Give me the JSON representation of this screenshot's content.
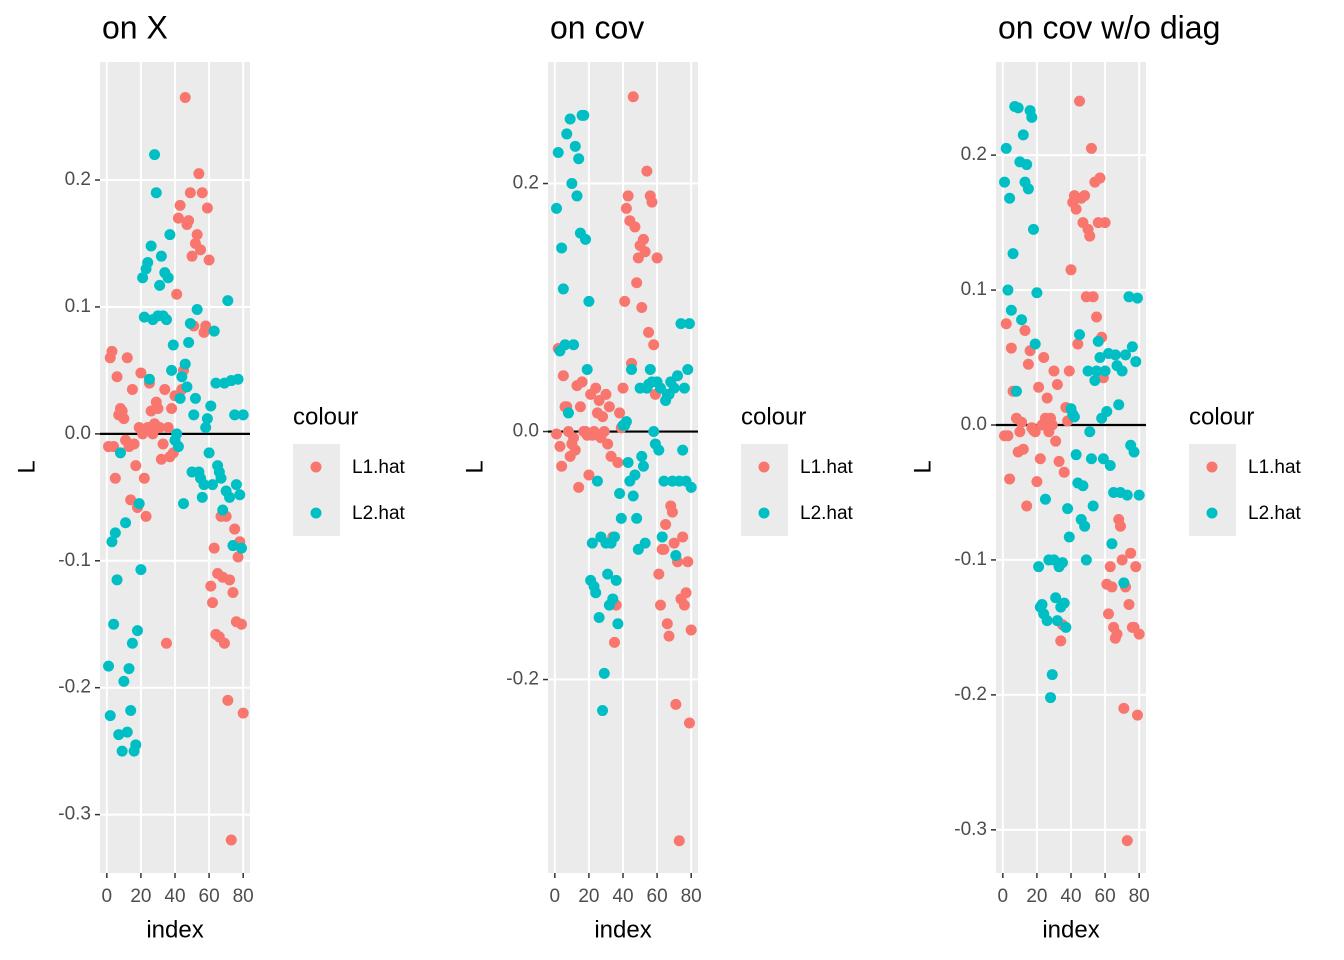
{
  "chart_data": [
    {
      "type": "scatter",
      "title": "on X",
      "xlabel": "index",
      "ylabel": "L",
      "legend_title": "colour",
      "legend": "right",
      "grid": true,
      "hline": 0,
      "x": [
        1,
        2,
        3,
        4,
        5,
        6,
        7,
        8,
        9,
        10,
        11,
        12,
        13,
        14,
        15,
        16,
        17,
        18,
        19,
        20,
        21,
        22,
        23,
        24,
        25,
        26,
        27,
        28,
        29,
        30,
        31,
        32,
        33,
        34,
        35,
        36,
        37,
        38,
        39,
        40,
        41,
        42,
        43,
        44,
        45,
        46,
        47,
        48,
        49,
        50,
        51,
        52,
        53,
        54,
        55,
        56,
        57,
        58,
        59,
        60,
        61,
        62,
        63,
        64,
        65,
        66,
        67,
        68,
        69,
        70,
        71,
        72,
        73,
        74,
        75,
        76,
        77,
        78,
        79,
        80
      ],
      "xlim": [
        -4,
        84
      ],
      "xticks": [
        0,
        20,
        40,
        60,
        80
      ],
      "ylim": [
        -0.346,
        0.293
      ],
      "yticks": [
        -0.3,
        -0.2,
        -0.1,
        {
          "value": 0,
          "label": "0.0"
        },
        0.1,
        0.2
      ],
      "series": [
        {
          "name": "L1.hat",
          "color": "#F8766D",
          "values": [
            -0.01,
            0.06,
            0.065,
            -0.01,
            -0.035,
            0.045,
            0.015,
            0.02,
            0.018,
            0.012,
            -0.005,
            0.06,
            -0.01,
            -0.052,
            0.035,
            -0.008,
            -0.025,
            -0.058,
            0.005,
            0.048,
            0.0,
            -0.035,
            -0.065,
            0.005,
            0.04,
            0.018,
            0.0,
            0.008,
            0.025,
            0.02,
            0.005,
            -0.02,
            -0.008,
            0.035,
            -0.165,
            0.005,
            -0.018,
            0.02,
            -0.015,
            0.03,
            0.11,
            0.17,
            0.18,
            0.035,
            0.05,
            0.265,
            0.165,
            0.168,
            0.19,
            0.14,
            0.085,
            0.15,
            0.157,
            0.205,
            0.145,
            0.19,
            0.08,
            0.085,
            0.178,
            0.137,
            -0.12,
            -0.133,
            -0.09,
            -0.158,
            -0.11,
            -0.16,
            -0.065,
            -0.113,
            -0.165,
            -0.065,
            -0.21,
            -0.115,
            -0.32,
            -0.125,
            -0.075,
            -0.148,
            -0.097,
            -0.085,
            -0.15,
            -0.22
          ]
        },
        {
          "name": "L2.hat",
          "color": "#00BFC4",
          "values": [
            -0.183,
            -0.222,
            -0.085,
            -0.15,
            -0.078,
            -0.115,
            -0.237,
            -0.015,
            -0.25,
            -0.195,
            -0.07,
            -0.235,
            -0.185,
            -0.218,
            -0.165,
            -0.25,
            -0.245,
            -0.155,
            -0.055,
            -0.107,
            0.123,
            0.092,
            0.13,
            0.135,
            0.043,
            0.148,
            0.09,
            0.22,
            0.19,
            0.093,
            0.117,
            0.14,
            0.093,
            0.127,
            0.09,
            0.123,
            0.157,
            0.05,
            0.07,
            -0.005,
            0.0,
            -0.01,
            0.028,
            0.045,
            -0.055,
            0.055,
            0.037,
            0.072,
            0.087,
            -0.03,
            0.015,
            0.028,
            0.098,
            -0.03,
            -0.035,
            -0.05,
            -0.04,
            0.005,
            0.012,
            -0.015,
            0.022,
            -0.04,
            0.081,
            0.04,
            -0.025,
            -0.03,
            -0.035,
            -0.06,
            0.04,
            -0.045,
            0.105,
            -0.05,
            0.042,
            -0.088,
            0.015,
            -0.04,
            0.043,
            -0.048,
            -0.09,
            0.015
          ]
        }
      ]
    },
    {
      "type": "scatter",
      "title": "on cov",
      "xlabel": "index",
      "ylabel": "L",
      "legend_title": "colour",
      "legend": "right",
      "grid": true,
      "hline": 0,
      "x": [
        1,
        2,
        3,
        4,
        5,
        6,
        7,
        8,
        9,
        10,
        11,
        12,
        13,
        14,
        15,
        16,
        17,
        18,
        19,
        20,
        21,
        22,
        23,
        24,
        25,
        26,
        27,
        28,
        29,
        30,
        31,
        32,
        33,
        34,
        35,
        36,
        37,
        38,
        39,
        40,
        41,
        42,
        43,
        44,
        45,
        46,
        47,
        48,
        49,
        50,
        51,
        52,
        53,
        54,
        55,
        56,
        57,
        58,
        59,
        60,
        61,
        62,
        63,
        64,
        65,
        66,
        67,
        68,
        69,
        70,
        71,
        72,
        73,
        74,
        75,
        76,
        77,
        78,
        79,
        80
      ],
      "xlim": [
        -4,
        84
      ],
      "xticks": [
        0,
        20,
        40,
        60,
        80
      ],
      "ylim": [
        -0.356,
        0.298
      ],
      "yticks": [
        -0.2,
        {
          "value": 0,
          "label": "0.0"
        },
        0.2
      ],
      "series": [
        {
          "name": "L1.hat",
          "color": "#F8766D",
          "values": [
            -0.002,
            0.067,
            -0.012,
            -0.028,
            0.045,
            0.02,
            0.02,
            0.0,
            -0.02,
            -0.01,
            -0.005,
            -0.015,
            0.037,
            -0.045,
            0.02,
            0.04,
            0.0,
            0.0,
            -0.003,
            -0.035,
            0.03,
            -0.003,
            0.0,
            0.035,
            0.015,
            0.025,
            -0.005,
            0.012,
            0.0,
            0.03,
            -0.01,
            0.02,
            -0.02,
            -0.085,
            -0.17,
            -0.14,
            -0.025,
            0.015,
            0.003,
            0.035,
            0.105,
            0.18,
            0.19,
            0.17,
            0.055,
            0.27,
            0.165,
            0.12,
            0.14,
            0.15,
            0.1,
            0.155,
            0.145,
            0.21,
            0.08,
            0.19,
            0.185,
            0.07,
            0.03,
            0.14,
            -0.115,
            -0.14,
            -0.095,
            -0.095,
            -0.075,
            -0.155,
            -0.165,
            -0.06,
            -0.065,
            -0.09,
            -0.22,
            -0.105,
            -0.33,
            -0.135,
            -0.085,
            -0.14,
            -0.13,
            -0.105,
            -0.235,
            -0.16
          ]
        },
        {
          "name": "L2.hat",
          "color": "#00BFC4",
          "values": [
            0.18,
            0.225,
            0.065,
            0.148,
            0.115,
            0.07,
            0.24,
            0.015,
            0.252,
            0.2,
            0.07,
            0.23,
            0.19,
            0.22,
            0.16,
            0.255,
            0.255,
            0.155,
            0.05,
            0.105,
            -0.12,
            -0.09,
            -0.125,
            -0.13,
            -0.04,
            -0.15,
            -0.085,
            -0.225,
            -0.195,
            -0.09,
            -0.115,
            -0.14,
            -0.09,
            -0.135,
            -0.085,
            -0.12,
            -0.155,
            -0.05,
            -0.07,
            0.005,
            0.005,
            0.008,
            -0.025,
            -0.04,
            0.05,
            -0.052,
            -0.035,
            -0.07,
            -0.095,
            0.035,
            -0.02,
            -0.028,
            -0.09,
            0.035,
            0.038,
            0.05,
            0.04,
            0.0,
            -0.01,
            0.04,
            -0.015,
            0.035,
            -0.085,
            -0.04,
            0.025,
            0.03,
            0.03,
            0.04,
            -0.04,
            0.035,
            -0.1,
            0.045,
            -0.04,
            0.087,
            -0.015,
            0.035,
            -0.04,
            0.05,
            0.087,
            -0.045
          ]
        }
      ]
    },
    {
      "type": "scatter",
      "title": "on cov w/o diag",
      "xlabel": "index",
      "ylabel": "L",
      "legend_title": "colour",
      "legend": "right",
      "grid": true,
      "hline": 0,
      "x": [
        1,
        2,
        3,
        4,
        5,
        6,
        7,
        8,
        9,
        10,
        11,
        12,
        13,
        14,
        15,
        16,
        17,
        18,
        19,
        20,
        21,
        22,
        23,
        24,
        25,
        26,
        27,
        28,
        29,
        30,
        31,
        32,
        33,
        34,
        35,
        36,
        37,
        38,
        39,
        40,
        41,
        42,
        43,
        44,
        45,
        46,
        47,
        48,
        49,
        50,
        51,
        52,
        53,
        54,
        55,
        56,
        57,
        58,
        59,
        60,
        61,
        62,
        63,
        64,
        65,
        66,
        67,
        68,
        69,
        70,
        71,
        72,
        73,
        74,
        75,
        76,
        77,
        78,
        79,
        80
      ],
      "xlim": [
        -4,
        84
      ],
      "xticks": [
        0,
        20,
        40,
        60,
        80
      ],
      "ylim": [
        -0.332,
        0.269
      ],
      "yticks": [
        -0.3,
        -0.2,
        -0.1,
        {
          "value": 0,
          "label": "0.0"
        },
        0.1,
        0.2
      ],
      "series": [
        {
          "name": "L1.hat",
          "color": "#F8766D",
          "values": [
            -0.008,
            0.075,
            -0.008,
            -0.04,
            0.057,
            0.025,
            0.025,
            0.005,
            -0.02,
            -0.005,
            0.002,
            -0.018,
            0.07,
            -0.06,
            0.045,
            0.055,
            -0.002,
            -0.004,
            -0.005,
            -0.042,
            0.028,
            -0.025,
            0.0,
            0.05,
            0.005,
            0.02,
            -0.005,
            0.005,
            0.0,
            0.04,
            -0.012,
            0.03,
            -0.027,
            -0.16,
            -0.148,
            -0.035,
            0.013,
            0.003,
            0.04,
            0.115,
            0.165,
            0.17,
            0.16,
            0.06,
            0.24,
            0.168,
            0.15,
            0.17,
            0.095,
            0.145,
            0.14,
            0.205,
            0.095,
            0.18,
            0.08,
            0.15,
            0.183,
            0.065,
            0.035,
            0.15,
            -0.118,
            -0.14,
            -0.105,
            -0.12,
            -0.15,
            -0.158,
            -0.155,
            -0.07,
            -0.075,
            -0.1,
            -0.21,
            -0.12,
            -0.308,
            -0.133,
            -0.095,
            -0.15,
            -0.15,
            -0.105,
            -0.215,
            -0.155
          ]
        },
        {
          "name": "L2.hat",
          "color": "#00BFC4",
          "values": [
            0.18,
            0.205,
            0.1,
            0.168,
            0.085,
            0.127,
            0.236,
            0.025,
            0.235,
            0.195,
            0.078,
            0.215,
            0.18,
            0.193,
            0.175,
            0.233,
            0.228,
            0.145,
            0.06,
            0.098,
            -0.105,
            -0.135,
            -0.133,
            -0.14,
            -0.055,
            -0.145,
            -0.1,
            -0.202,
            -0.185,
            -0.1,
            -0.128,
            -0.145,
            -0.105,
            -0.135,
            -0.102,
            -0.132,
            -0.15,
            -0.062,
            -0.083,
            0.012,
            0.008,
            0.006,
            -0.022,
            -0.043,
            0.067,
            -0.07,
            -0.045,
            -0.075,
            -0.1,
            0.04,
            -0.005,
            -0.025,
            -0.06,
            0.033,
            0.04,
            0.062,
            0.05,
            0.005,
            -0.025,
            0.04,
            0.01,
            0.053,
            -0.03,
            -0.088,
            -0.05,
            0.052,
            0.044,
            0.015,
            -0.05,
            0.04,
            -0.117,
            0.052,
            -0.052,
            0.095,
            -0.015,
            0.058,
            -0.02,
            0.047,
            0.094,
            -0.052
          ]
        }
      ]
    }
  ]
}
